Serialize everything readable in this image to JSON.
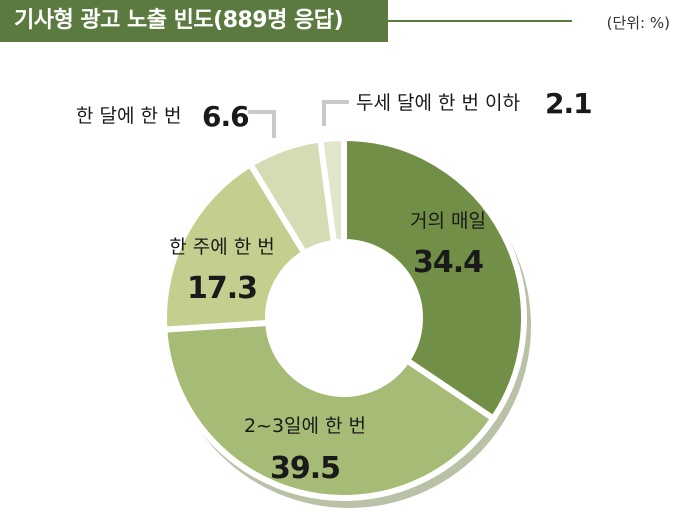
{
  "header": {
    "title": "기사형 광고 노출 빈도(889명 응답)",
    "unit": "(단위: %)"
  },
  "colors": {
    "title_bg": "#5a7a3f",
    "slice_1": "#718f46",
    "slice_2": "#a6bb75",
    "slice_3": "#c4cf8f",
    "slice_4": "#d5dcb4",
    "slice_5": "#e1e5c9",
    "shadow": "#7f8f5e"
  },
  "chart_data": {
    "type": "pie",
    "donut": true,
    "title": "기사형 광고 노출 빈도(889명 응답)",
    "unit": "(단위: %)",
    "categories": [
      "거의 매일",
      "2~3일에 한 번",
      "한 주에 한 번",
      "한 달에 한 번",
      "두세 달에 한 번 이하"
    ],
    "values": [
      34.4,
      39.5,
      17.3,
      6.6,
      2.1
    ],
    "labels": [
      {
        "name": "거의 매일",
        "value": "34.4"
      },
      {
        "name": "2~3일에 한 번",
        "value": "39.5"
      },
      {
        "name": "한 주에 한 번",
        "value": "17.3"
      },
      {
        "name": "한 달에 한 번",
        "value": "6.6"
      },
      {
        "name": "두세 달에 한 번 이하",
        "value": "2.1"
      }
    ]
  }
}
